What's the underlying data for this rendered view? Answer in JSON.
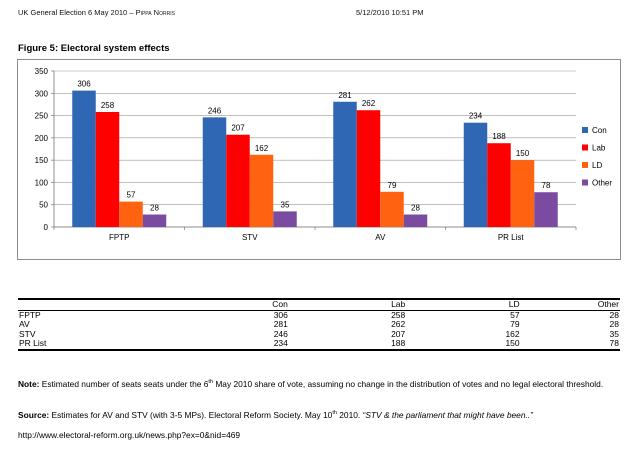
{
  "header": {
    "left_prefix": "UK General Election 6 May 2010",
    "left_sep": " – ",
    "left_author": "Pippa Norris",
    "right": "5/12/2010 10:51 PM"
  },
  "figure_title": "Figure 5: Electoral system effects",
  "colors": {
    "Con": "#3067B5",
    "Lab": "#FF0000",
    "LD": "#FF6310",
    "Other": "#7A4BA0"
  },
  "chart_data": {
    "type": "bar",
    "title": "Figure 5: Electoral system effects",
    "categories": [
      "FPTP",
      "STV",
      "AV",
      "PR List"
    ],
    "series": [
      {
        "name": "Con",
        "values": [
          306,
          246,
          281,
          234
        ]
      },
      {
        "name": "Lab",
        "values": [
          258,
          207,
          262,
          188
        ]
      },
      {
        "name": "LD",
        "values": [
          57,
          162,
          79,
          150
        ]
      },
      {
        "name": "Other",
        "values": [
          28,
          35,
          28,
          78
        ]
      }
    ],
    "yticks": [
      0,
      50,
      100,
      150,
      200,
      250,
      300,
      350
    ],
    "ylim": [
      0,
      350
    ],
    "xlabel": "",
    "ylabel": "",
    "grid": true,
    "legend": "right"
  },
  "table": {
    "headers": [
      "",
      "Con",
      "Lab",
      "LD",
      "Other"
    ],
    "rows": [
      [
        "FPTP",
        "306",
        "258",
        "57",
        "28"
      ],
      [
        "AV",
        "281",
        "262",
        "79",
        "28"
      ],
      [
        "STV",
        "246",
        "207",
        "162",
        "35"
      ],
      [
        "PR List",
        "234",
        "188",
        "150",
        "78"
      ]
    ]
  },
  "note": {
    "label": "Note:",
    "text_a": " Estimated number of seats seats under the 6",
    "sup": "th",
    "text_b": " May 2010 share of vote, assuming no change in the distribution of votes and no legal electoral threshold."
  },
  "source": {
    "label": "Source:",
    "text_a": " Estimates for AV and STV (with 3-5 MPs). Electoral Reform Society. May 10",
    "sup": "th",
    "text_b": " 2010. ",
    "italic": "“STV & the parliament that might have been..”"
  },
  "url": "http://www.electoral-reform.org.uk/news.php?ex=0&nid=469"
}
